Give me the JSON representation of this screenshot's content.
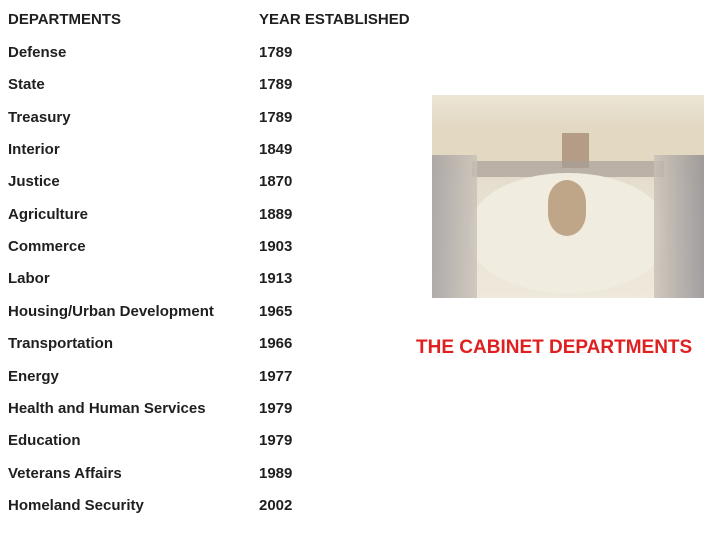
{
  "table": {
    "headers": [
      "DEPARTMENTS",
      "YEAR ESTABLISHED"
    ],
    "rows": [
      [
        "Defense",
        "1789"
      ],
      [
        "State",
        "1789"
      ],
      [
        "Treasury",
        "1789"
      ],
      [
        "Interior",
        "1849"
      ],
      [
        "Justice",
        "1870"
      ],
      [
        "Agriculture",
        "1889"
      ],
      [
        "Commerce",
        "1903"
      ],
      [
        "Labor",
        "1913"
      ],
      [
        "Housing/Urban Development",
        "1965"
      ],
      [
        "Transportation",
        "1966"
      ],
      [
        "Energy",
        "1977"
      ],
      [
        "Health and Human Services",
        "1979"
      ],
      [
        "Education",
        "1979"
      ],
      [
        "Veterans Affairs",
        "1989"
      ],
      [
        "Homeland Security",
        "2002"
      ]
    ]
  },
  "caption": "THE CABINET DEPARTMENTS",
  "colors": {
    "caption": "#e02020",
    "text": "#1f1f1f"
  }
}
